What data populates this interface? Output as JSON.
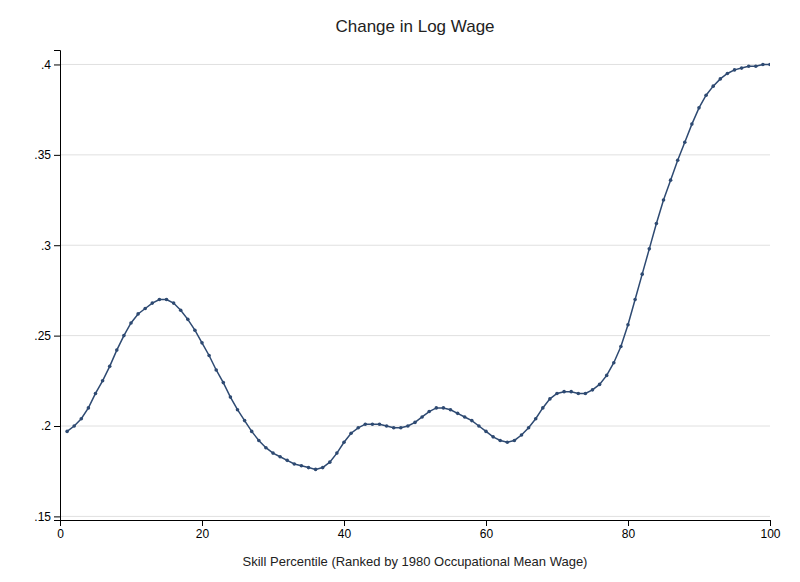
{
  "chart_data": {
    "type": "line",
    "title": "Change in Log Wage",
    "xlabel": "Skill Percentile (Ranked by 1980 Occupational Mean Wage)",
    "color": "#2e4a72",
    "marker": "circle",
    "grid": true,
    "xlim": [
      0,
      100
    ],
    "ylim": [
      0.148,
      0.408
    ],
    "xticks": [
      0,
      20,
      40,
      60,
      80,
      100
    ],
    "yticks": [
      {
        "value": 0.15,
        "label": ".15"
      },
      {
        "value": 0.2,
        "label": ".2"
      },
      {
        "value": 0.25,
        "label": ".25"
      },
      {
        "value": 0.3,
        "label": ".3"
      },
      {
        "value": 0.35,
        "label": ".35"
      },
      {
        "value": 0.4,
        "label": ".4"
      }
    ],
    "x": [
      1,
      2,
      3,
      4,
      5,
      6,
      7,
      8,
      9,
      10,
      11,
      12,
      13,
      14,
      15,
      16,
      17,
      18,
      19,
      20,
      21,
      22,
      23,
      24,
      25,
      26,
      27,
      28,
      29,
      30,
      31,
      32,
      33,
      34,
      35,
      36,
      37,
      38,
      39,
      40,
      41,
      42,
      43,
      44,
      45,
      46,
      47,
      48,
      49,
      50,
      51,
      52,
      53,
      54,
      55,
      56,
      57,
      58,
      59,
      60,
      61,
      62,
      63,
      64,
      65,
      66,
      67,
      68,
      69,
      70,
      71,
      72,
      73,
      74,
      75,
      76,
      77,
      78,
      79,
      80,
      81,
      82,
      83,
      84,
      85,
      86,
      87,
      88,
      89,
      90,
      91,
      92,
      93,
      94,
      95,
      96,
      97,
      98,
      99,
      100
    ],
    "values": [
      0.197,
      0.2,
      0.204,
      0.21,
      0.218,
      0.225,
      0.233,
      0.242,
      0.25,
      0.257,
      0.262,
      0.265,
      0.268,
      0.27,
      0.27,
      0.268,
      0.264,
      0.259,
      0.253,
      0.246,
      0.239,
      0.231,
      0.224,
      0.216,
      0.209,
      0.203,
      0.197,
      0.192,
      0.188,
      0.185,
      0.183,
      0.181,
      0.179,
      0.178,
      0.177,
      0.176,
      0.177,
      0.18,
      0.185,
      0.191,
      0.196,
      0.199,
      0.201,
      0.201,
      0.201,
      0.2,
      0.199,
      0.199,
      0.2,
      0.202,
      0.205,
      0.208,
      0.21,
      0.21,
      0.209,
      0.207,
      0.205,
      0.203,
      0.2,
      0.197,
      0.194,
      0.192,
      0.191,
      0.192,
      0.195,
      0.199,
      0.204,
      0.21,
      0.215,
      0.218,
      0.219,
      0.219,
      0.218,
      0.218,
      0.22,
      0.223,
      0.228,
      0.235,
      0.244,
      0.256,
      0.27,
      0.284,
      0.298,
      0.312,
      0.325,
      0.336,
      0.347,
      0.357,
      0.367,
      0.376,
      0.383,
      0.388,
      0.392,
      0.395,
      0.397,
      0.398,
      0.399,
      0.399,
      0.4,
      0.4
    ]
  }
}
